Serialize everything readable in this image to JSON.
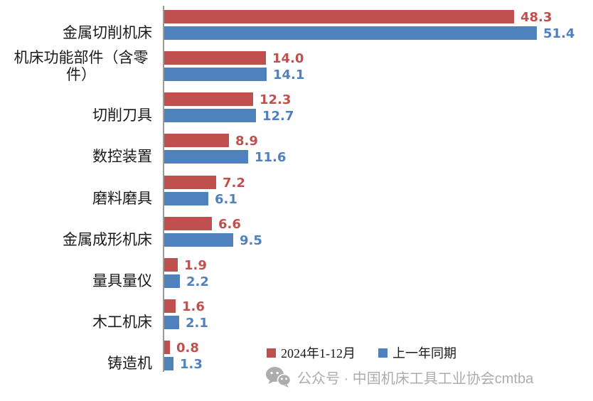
{
  "chart_data": {
    "type": "bar",
    "orientation": "horizontal",
    "title": "",
    "categories": [
      "金属切削机床",
      "机床功能部件（含零件）",
      "切削刀具",
      "数控装置",
      "磨料磨具",
      "金属成形机床",
      "量具量仪",
      "木工机床",
      "铸造机"
    ],
    "series": [
      {
        "name": "2024年1-12月",
        "color": "#C0504D",
        "values": [
          48.3,
          14.0,
          12.3,
          8.9,
          7.2,
          6.6,
          1.9,
          1.6,
          0.8
        ]
      },
      {
        "name": "上一年同期",
        "color": "#4F81BD",
        "values": [
          51.4,
          14.1,
          12.7,
          11.6,
          6.1,
          9.5,
          2.2,
          2.1,
          1.3
        ]
      }
    ],
    "value_label_decimals": 1,
    "xlim": [
      0,
      52
    ],
    "grid": false,
    "axis_color": "#9A9A9A",
    "legend_position": "bottom-center"
  },
  "watermark": {
    "icon": "wechat-icon",
    "text": "公众号 · 中国机床工具工业协会cmtba",
    "color": "#ADADAD"
  }
}
